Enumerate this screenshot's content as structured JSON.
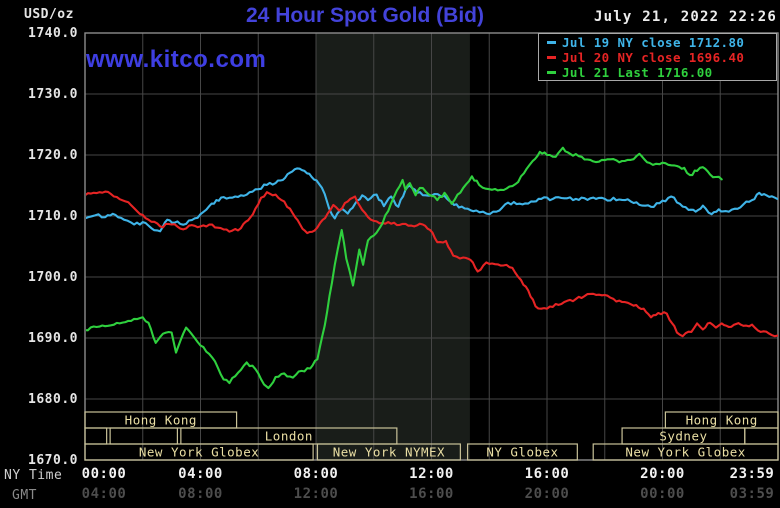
{
  "header": {
    "unit_label": "USD/oz",
    "title": "24 Hour Spot Gold (Bid)",
    "watermark": "www.kitco.com",
    "timestamp": "July 21, 2022 22:26"
  },
  "legend": {
    "entries": [
      {
        "label": "Jul 19 NY close 1712.80",
        "color": "#3fb4e8"
      },
      {
        "label": "Jul 20 NY close 1696.40",
        "color": "#e62424"
      },
      {
        "label": "Jul 21 Last 1716.00",
        "color": "#2fd03e"
      }
    ]
  },
  "colors": {
    "background": "#000000",
    "title_blue": "#4343da",
    "watermark_blue": "#3e3ee2",
    "grid": "#464646",
    "plot_border": "#8c8c8c",
    "nymex_band": "#191d19",
    "session_border": "#c9c298",
    "session_text": "#eadfa4",
    "white_text": "#e6e6e6",
    "gmt_dim": "#4d4d4d",
    "series_cyan": "#3fb4e8",
    "series_red": "#e62424",
    "series_green": "#2fd03e"
  },
  "y_axis": {
    "labels": [
      "1740.0",
      "1730.0",
      "1720.0",
      "1710.0",
      "1700.0",
      "1690.0",
      "1680.0",
      "1670.0"
    ],
    "values": [
      1740,
      1730,
      1720,
      1710,
      1700,
      1690,
      1680,
      1670
    ]
  },
  "x_axis": {
    "ny_time_label": "NY Time",
    "gmt_label": "GMT",
    "ny_ticks": [
      {
        "hour": 0,
        "label": "00:00"
      },
      {
        "hour": 4,
        "label": "04:00"
      },
      {
        "hour": 8,
        "label": "08:00"
      },
      {
        "hour": 12,
        "label": "12:00"
      },
      {
        "hour": 16,
        "label": "16:00"
      },
      {
        "hour": 20,
        "label": "20:00"
      },
      {
        "hour": 23.98,
        "label": "23:59"
      }
    ],
    "gmt_ticks": [
      {
        "hour": 0,
        "label": "04:00"
      },
      {
        "hour": 4,
        "label": "08:00"
      },
      {
        "hour": 8,
        "label": "12:00"
      },
      {
        "hour": 12,
        "label": "16:00"
      },
      {
        "hour": 16,
        "label": "20:00"
      },
      {
        "hour": 20,
        "label": "00:00"
      },
      {
        "hour": 23.98,
        "label": "03:59"
      }
    ]
  },
  "sessions": [
    {
      "row": 1,
      "start": 0,
      "end": 5.25,
      "label": "Hong Kong"
    },
    {
      "row": 1,
      "start": 20.1,
      "end": 24,
      "label": "Hong Kong"
    },
    {
      "row": 2,
      "start": 0,
      "end": 0.75,
      "label": ""
    },
    {
      "row": 2,
      "start": 0.87,
      "end": 3.2,
      "label": ""
    },
    {
      "row": 2,
      "start": 3.32,
      "end": 10.8,
      "label": "London"
    },
    {
      "row": 2,
      "start": 18.6,
      "end": 22.85,
      "label": "Sydney"
    },
    {
      "row": 2,
      "start": 22.85,
      "end": 24,
      "label": ""
    },
    {
      "row": 3,
      "start": 0,
      "end": 7.9,
      "label": "New York Globex"
    },
    {
      "row": 3,
      "start": 8.05,
      "end": 13.0,
      "label": "New York NYMEX"
    },
    {
      "row": 3,
      "start": 13.25,
      "end": 17.05,
      "label": "NY Globex"
    },
    {
      "row": 3,
      "start": 17.6,
      "end": 24,
      "label": "New York Globex"
    }
  ],
  "chart_data": {
    "type": "line",
    "title": "24 Hour Spot Gold (Bid)",
    "ylabel": "USD/oz",
    "xlabel": "NY Time (hours)",
    "xlim": [
      0,
      24
    ],
    "ylim": [
      1670,
      1740
    ],
    "y_gridlines": [
      1680,
      1690,
      1700,
      1710,
      1720,
      1730,
      1740
    ],
    "x_gridline_step_hours": 2,
    "nymex_band_hours": [
      8.0,
      13.33
    ],
    "legend_position": "top-right",
    "series": [
      {
        "name": "Jul 19 (NY close 1712.80)",
        "color": "#3fb4e8",
        "points": [
          [
            0,
            1709.6
          ],
          [
            0.35,
            1710.1
          ],
          [
            0.7,
            1709.8
          ],
          [
            1.05,
            1710.2
          ],
          [
            1.35,
            1709.4
          ],
          [
            1.7,
            1708.6
          ],
          [
            2,
            1709
          ],
          [
            2.3,
            1708
          ],
          [
            2.6,
            1707.5
          ],
          [
            2.85,
            1709.4
          ],
          [
            3.1,
            1708.9
          ],
          [
            3.5,
            1708.7
          ],
          [
            3.8,
            1709.6
          ],
          [
            4,
            1710.3
          ],
          [
            4.3,
            1711.6
          ],
          [
            4.55,
            1712.6
          ],
          [
            4.8,
            1713.1
          ],
          [
            5.1,
            1713
          ],
          [
            5.4,
            1713.4
          ],
          [
            5.7,
            1713.9
          ],
          [
            6,
            1714.4
          ],
          [
            6.3,
            1715.1
          ],
          [
            6.6,
            1715.4
          ],
          [
            6.85,
            1715.9
          ],
          [
            7.1,
            1717.1
          ],
          [
            7.35,
            1717.8
          ],
          [
            7.6,
            1717.4
          ],
          [
            7.85,
            1716.4
          ],
          [
            8.1,
            1715.3
          ],
          [
            8.3,
            1713.6
          ],
          [
            8.45,
            1711.3
          ],
          [
            8.65,
            1709.6
          ],
          [
            8.9,
            1711.2
          ],
          [
            9.1,
            1710.4
          ],
          [
            9.35,
            1712
          ],
          [
            9.6,
            1713.4
          ],
          [
            9.8,
            1712.6
          ],
          [
            10.1,
            1713.5
          ],
          [
            10.35,
            1711.6
          ],
          [
            10.6,
            1713.2
          ],
          [
            10.85,
            1711.5
          ],
          [
            11.1,
            1714.3
          ],
          [
            11.25,
            1715
          ],
          [
            11.5,
            1713.8
          ],
          [
            11.8,
            1713.4
          ],
          [
            12.1,
            1713.6
          ],
          [
            12.45,
            1713.3
          ],
          [
            12.7,
            1712.2
          ],
          [
            12.95,
            1711.4
          ],
          [
            13.25,
            1711.2
          ],
          [
            13.55,
            1710.9
          ],
          [
            13.9,
            1710.4
          ],
          [
            14.25,
            1710.7
          ],
          [
            14.55,
            1711.9
          ],
          [
            14.85,
            1712.3
          ],
          [
            15.15,
            1711.9
          ],
          [
            15.45,
            1712.4
          ],
          [
            15.8,
            1712.8
          ],
          [
            16.2,
            1712.8
          ],
          [
            16.6,
            1712.9
          ],
          [
            17,
            1712.8
          ],
          [
            17.5,
            1712.9
          ],
          [
            18,
            1712.8
          ],
          [
            18.5,
            1712.7
          ],
          [
            18.9,
            1712.4
          ],
          [
            19.3,
            1711.7
          ],
          [
            19.6,
            1711.5
          ],
          [
            19.9,
            1712.1
          ],
          [
            20.3,
            1713.2
          ],
          [
            20.6,
            1712
          ],
          [
            20.9,
            1711
          ],
          [
            21.15,
            1710.7
          ],
          [
            21.4,
            1711.7
          ],
          [
            21.7,
            1710.3
          ],
          [
            21.95,
            1711.1
          ],
          [
            22.2,
            1710.8
          ],
          [
            22.5,
            1711.2
          ],
          [
            22.8,
            1711.9
          ],
          [
            23.1,
            1712.6
          ],
          [
            23.35,
            1713.8
          ],
          [
            23.6,
            1713.4
          ],
          [
            23.98,
            1712.8
          ]
        ]
      },
      {
        "name": "Jul 20 (NY close 1696.40)",
        "color": "#e62424",
        "points": [
          [
            0,
            1713.4
          ],
          [
            0.3,
            1713.8
          ],
          [
            0.7,
            1714
          ],
          [
            1,
            1713.2
          ],
          [
            1.4,
            1712.4
          ],
          [
            1.8,
            1710.8
          ],
          [
            2.2,
            1709.4
          ],
          [
            2.6,
            1708.3
          ],
          [
            3,
            1708.6
          ],
          [
            3.4,
            1707.8
          ],
          [
            3.7,
            1708.5
          ],
          [
            4,
            1708.3
          ],
          [
            4.4,
            1708.6
          ],
          [
            4.8,
            1707.8
          ],
          [
            5.1,
            1707.6
          ],
          [
            5.4,
            1708
          ],
          [
            5.65,
            1709.3
          ],
          [
            5.9,
            1711.2
          ],
          [
            6.1,
            1713
          ],
          [
            6.3,
            1713.9
          ],
          [
            6.6,
            1713.5
          ],
          [
            6.9,
            1712.4
          ],
          [
            7.2,
            1710.4
          ],
          [
            7.45,
            1708.6
          ],
          [
            7.7,
            1707.2
          ],
          [
            7.95,
            1707.6
          ],
          [
            8.15,
            1708.9
          ],
          [
            8.4,
            1710.4
          ],
          [
            8.6,
            1711.8
          ],
          [
            8.8,
            1710.9
          ],
          [
            9.1,
            1712.4
          ],
          [
            9.35,
            1713.2
          ],
          [
            9.6,
            1711
          ],
          [
            9.9,
            1709.4
          ],
          [
            10.2,
            1708.8
          ],
          [
            10.5,
            1709
          ],
          [
            10.8,
            1708.5
          ],
          [
            11.1,
            1708.7
          ],
          [
            11.4,
            1708.3
          ],
          [
            11.7,
            1708.6
          ],
          [
            11.95,
            1707.7
          ],
          [
            12.2,
            1705.7
          ],
          [
            12.5,
            1705.9
          ],
          [
            12.75,
            1703.5
          ],
          [
            13.1,
            1703.2
          ],
          [
            13.35,
            1702.8
          ],
          [
            13.6,
            1700.9
          ],
          [
            13.9,
            1702.4
          ],
          [
            14.2,
            1702.1
          ],
          [
            14.5,
            1701.9
          ],
          [
            14.8,
            1701.5
          ],
          [
            15.1,
            1699.5
          ],
          [
            15.35,
            1697.8
          ],
          [
            15.6,
            1695.2
          ],
          [
            15.9,
            1694.9
          ],
          [
            16.2,
            1695.1
          ],
          [
            16.6,
            1695.9
          ],
          [
            17,
            1696.4
          ],
          [
            17.4,
            1697.2
          ],
          [
            17.8,
            1697.1
          ],
          [
            18.2,
            1696.6
          ],
          [
            18.6,
            1695.9
          ],
          [
            19,
            1695.3
          ],
          [
            19.35,
            1694.8
          ],
          [
            19.6,
            1693.4
          ],
          [
            19.85,
            1694.1
          ],
          [
            20.15,
            1694
          ],
          [
            20.5,
            1690.9
          ],
          [
            20.7,
            1690.3
          ],
          [
            21,
            1691
          ],
          [
            21.2,
            1692.4
          ],
          [
            21.4,
            1691.4
          ],
          [
            21.65,
            1692.5
          ],
          [
            21.85,
            1691.7
          ],
          [
            22.05,
            1692.4
          ],
          [
            22.3,
            1691.8
          ],
          [
            22.55,
            1692.3
          ],
          [
            22.8,
            1692
          ],
          [
            23.1,
            1692.2
          ],
          [
            23.4,
            1691
          ],
          [
            23.7,
            1690.7
          ],
          [
            23.98,
            1690.4
          ]
        ]
      },
      {
        "name": "Jul 21 (Last 1716.00)",
        "color": "#2fd03e",
        "points": [
          [
            0,
            1691.3
          ],
          [
            0.4,
            1691.8
          ],
          [
            0.8,
            1692
          ],
          [
            1.2,
            1692.4
          ],
          [
            1.6,
            1692.8
          ],
          [
            2,
            1693.4
          ],
          [
            2.2,
            1692.5
          ],
          [
            2.45,
            1689.2
          ],
          [
            2.7,
            1690.7
          ],
          [
            3,
            1690.9
          ],
          [
            3.15,
            1687.6
          ],
          [
            3.3,
            1689.5
          ],
          [
            3.5,
            1691.7
          ],
          [
            3.8,
            1690
          ],
          [
            4.1,
            1688.5
          ],
          [
            4.5,
            1686.2
          ],
          [
            4.8,
            1683.2
          ],
          [
            5,
            1682.6
          ],
          [
            5.3,
            1684.3
          ],
          [
            5.6,
            1686
          ],
          [
            5.9,
            1684.9
          ],
          [
            6.2,
            1682.4
          ],
          [
            6.35,
            1681.8
          ],
          [
            6.6,
            1683.6
          ],
          [
            6.9,
            1684.2
          ],
          [
            7.2,
            1683.5
          ],
          [
            7.5,
            1684.6
          ],
          [
            7.8,
            1685
          ],
          [
            8.05,
            1686.5
          ],
          [
            8.3,
            1692
          ],
          [
            8.55,
            1699
          ],
          [
            8.75,
            1704.5
          ],
          [
            8.89,
            1707.7
          ],
          [
            9.05,
            1703
          ],
          [
            9.28,
            1698.6
          ],
          [
            9.5,
            1704.5
          ],
          [
            9.63,
            1702
          ],
          [
            9.8,
            1706
          ],
          [
            10,
            1706.8
          ],
          [
            10.2,
            1708
          ],
          [
            10.5,
            1710.8
          ],
          [
            10.8,
            1714.2
          ],
          [
            11,
            1715.9
          ],
          [
            11.1,
            1714.3
          ],
          [
            11.25,
            1715.4
          ],
          [
            11.45,
            1713.4
          ],
          [
            11.6,
            1714.6
          ],
          [
            11.8,
            1714
          ],
          [
            12.2,
            1712.6
          ],
          [
            12.45,
            1713.8
          ],
          [
            12.7,
            1712
          ],
          [
            12.9,
            1713.5
          ],
          [
            13.2,
            1715.2
          ],
          [
            13.4,
            1716.5
          ],
          [
            13.65,
            1715.1
          ],
          [
            14,
            1714.4
          ],
          [
            14.3,
            1714.2
          ],
          [
            14.6,
            1714.5
          ],
          [
            14.9,
            1715.2
          ],
          [
            15.2,
            1717
          ],
          [
            15.5,
            1719
          ],
          [
            15.75,
            1720.5
          ],
          [
            16,
            1720
          ],
          [
            16.3,
            1719.7
          ],
          [
            16.55,
            1721.2
          ],
          [
            16.8,
            1720.2
          ],
          [
            17.1,
            1719.8
          ],
          [
            17.5,
            1719.2
          ],
          [
            17.8,
            1718.9
          ],
          [
            18.1,
            1719.3
          ],
          [
            18.5,
            1718.8
          ],
          [
            18.9,
            1719.2
          ],
          [
            19.2,
            1720.2
          ],
          [
            19.55,
            1718.7
          ],
          [
            19.9,
            1718.5
          ],
          [
            20.2,
            1718.4
          ],
          [
            20.5,
            1718.2
          ],
          [
            20.75,
            1717.9
          ],
          [
            20.95,
            1716.7
          ],
          [
            21.2,
            1717.4
          ],
          [
            21.4,
            1718
          ],
          [
            21.65,
            1716.8
          ],
          [
            21.85,
            1716.4
          ],
          [
            22.05,
            1716
          ]
        ]
      }
    ]
  }
}
